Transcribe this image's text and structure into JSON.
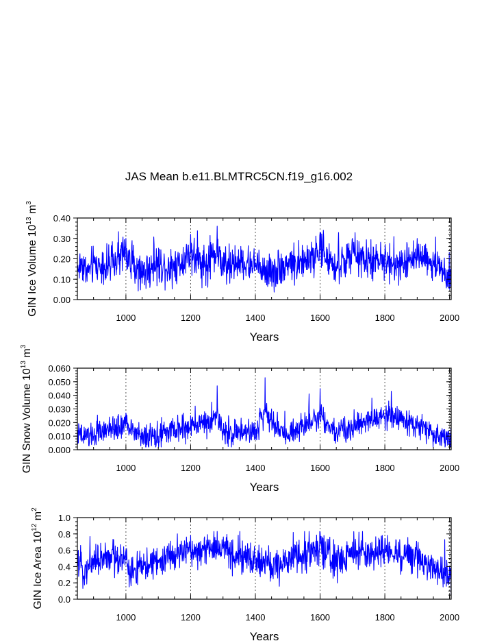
{
  "chart_data": {
    "title": "JAS Mean b.e11.BLMTRC5CN.f19_g16.002",
    "panels": [
      {
        "type": "line",
        "ylabel": "GIN Ice Volume",
        "yunit_base": "10",
        "yunit_exp": "13",
        "yunit_rest": " m",
        "yunit_rest_exp": "3",
        "xlabel": "Years",
        "xlim": [
          850,
          2005
        ],
        "ylim": [
          0,
          0.4
        ],
        "xticks": [
          1000,
          1200,
          1400,
          1600,
          1800,
          2000
        ],
        "yticks": [
          0,
          0.1,
          0.2,
          0.3,
          0.4
        ],
        "ytick_labels": [
          "0.00",
          "0.10",
          "0.20",
          "0.30",
          "0.40"
        ],
        "yminor": 0.02,
        "vlines": [
          1000,
          1200,
          1400,
          1600,
          1800,
          2000
        ],
        "series": [
          {
            "name": "GIN Ice Volume",
            "color": "#0000ff",
            "x_start": 850,
            "x_end": 2005,
            "approx": "annual values, typical 0.10-0.22, noisy",
            "keypoints": [
              [
                850,
                0.13
              ],
              [
                865,
                0.2
              ],
              [
                880,
                0.09
              ],
              [
                900,
                0.18
              ],
              [
                950,
                0.16
              ],
              [
                1000,
                0.3
              ],
              [
                1050,
                0.08
              ],
              [
                1100,
                0.18
              ],
              [
                1150,
                0.15
              ],
              [
                1200,
                0.32
              ],
              [
                1250,
                0.14
              ],
              [
                1282,
                0.36
              ],
              [
                1300,
                0.12
              ],
              [
                1350,
                0.2
              ],
              [
                1400,
                0.16
              ],
              [
                1450,
                0.1
              ],
              [
                1500,
                0.18
              ],
              [
                1550,
                0.2
              ],
              [
                1600,
                0.33
              ],
              [
                1650,
                0.14
              ],
              [
                1700,
                0.3
              ],
              [
                1750,
                0.2
              ],
              [
                1800,
                0.22
              ],
              [
                1850,
                0.16
              ],
              [
                1900,
                0.3
              ],
              [
                1950,
                0.18
              ],
              [
                2000,
                0.05
              ]
            ],
            "mean": 0.165,
            "spread": 0.045,
            "min": 0.0,
            "max": 0.36
          }
        ]
      },
      {
        "type": "line",
        "ylabel": "GIN Snow Volume",
        "yunit_base": "10",
        "yunit_exp": "13",
        "yunit_rest": " m",
        "yunit_rest_exp": "3",
        "xlabel": "Years",
        "xlim": [
          850,
          2005
        ],
        "ylim": [
          0,
          0.06
        ],
        "xticks": [
          1000,
          1200,
          1400,
          1600,
          1800,
          2000
        ],
        "yticks": [
          0,
          0.01,
          0.02,
          0.03,
          0.04,
          0.05,
          0.06
        ],
        "ytick_labels": [
          "0.000",
          "0.010",
          "0.020",
          "0.030",
          "0.040",
          "0.050",
          "0.060"
        ],
        "yminor": 0.002,
        "vlines": [
          1000,
          1200,
          1400,
          1600,
          1800,
          2000
        ],
        "series": [
          {
            "name": "GIN Snow Volume",
            "color": "#0000ff",
            "x_start": 850,
            "x_end": 2005,
            "approx": "annual values, typical 0.005-0.015, with spikes",
            "keypoints": [
              [
                850,
                0.008
              ],
              [
                900,
                0.01
              ],
              [
                1000,
                0.027
              ],
              [
                1050,
                0.006
              ],
              [
                1100,
                0.01
              ],
              [
                1200,
                0.025
              ],
              [
                1265,
                0.035
              ],
              [
                1282,
                0.047
              ],
              [
                1300,
                0.012
              ],
              [
                1400,
                0.015
              ],
              [
                1430,
                0.053
              ],
              [
                1450,
                0.03
              ],
              [
                1500,
                0.01
              ],
              [
                1600,
                0.045
              ],
              [
                1650,
                0.012
              ],
              [
                1760,
                0.038
              ],
              [
                1820,
                0.043
              ],
              [
                1900,
                0.025
              ],
              [
                2000,
                0.003
              ]
            ],
            "mean": 0.011,
            "spread": 0.0045,
            "min": 0.002,
            "max": 0.053
          }
        ]
      },
      {
        "type": "line",
        "ylabel": "GIN Ice Area",
        "yunit_base": "10",
        "yunit_exp": "12",
        "yunit_rest": " m",
        "yunit_rest_exp": "2",
        "xlabel": "Years",
        "xlim": [
          850,
          2005
        ],
        "ylim": [
          0,
          1.0
        ],
        "xticks": [
          1000,
          1200,
          1400,
          1600,
          1800,
          2000
        ],
        "yticks": [
          0,
          0.2,
          0.4,
          0.6,
          0.8,
          1.0
        ],
        "ytick_labels": [
          "0.0",
          "0.2",
          "0.4",
          "0.6",
          "0.8",
          "1.0"
        ],
        "yminor": 0.05,
        "vlines": [
          1000,
          1200,
          1400,
          1600,
          1800,
          2000
        ],
        "series": [
          {
            "name": "GIN Ice Area",
            "color": "#0000ff",
            "x_start": 850,
            "x_end": 2005,
            "approx": "annual values, typical 0.35-0.6, noisy",
            "keypoints": [
              [
                850,
                0.45
              ],
              [
                870,
                0.25
              ],
              [
                900,
                0.5
              ],
              [
                1000,
                0.6
              ],
              [
                1010,
                0.15
              ],
              [
                1100,
                0.45
              ],
              [
                1200,
                0.78
              ],
              [
                1282,
                0.83
              ],
              [
                1350,
                0.6
              ],
              [
                1400,
                0.5
              ],
              [
                1450,
                0.3
              ],
              [
                1600,
                0.82
              ],
              [
                1650,
                0.4
              ],
              [
                1700,
                0.7
              ],
              [
                1800,
                0.72
              ],
              [
                1900,
                0.6
              ],
              [
                1980,
                0.15
              ],
              [
                2005,
                0.05
              ]
            ],
            "mean": 0.46,
            "spread": 0.1,
            "min": 0.05,
            "max": 0.83
          }
        ]
      }
    ]
  }
}
